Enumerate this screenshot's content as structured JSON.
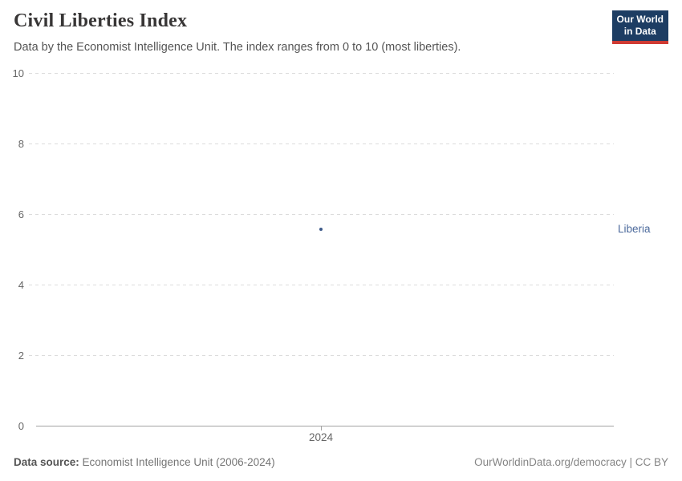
{
  "header": {
    "title": "Civil Liberties Index",
    "subtitle": "Data by the Economist Intelligence Unit. The index ranges from 0 to 10 (most liberties).",
    "logo": {
      "line1": "Our World",
      "line2": "in Data",
      "bg_color": "#1d3d63",
      "accent_color": "#cf3b33",
      "text_color": "#ffffff"
    }
  },
  "chart_data": {
    "type": "scatter",
    "title": "Civil Liberties Index",
    "x": [
      2024
    ],
    "xticks": [
      "2024"
    ],
    "yticks": [
      0,
      2,
      4,
      6,
      8,
      10
    ],
    "ylim": [
      0,
      10
    ],
    "grid": "horizontal-dashed",
    "series": [
      {
        "name": "Liberia",
        "values": [
          5.59
        ],
        "color": "#4c6a9c",
        "dot_color": "#3d5a8a"
      }
    ],
    "entity_label": "Liberia",
    "grid_color": "#dcdcdc",
    "axis_color": "#a3a3a3"
  },
  "footer": {
    "source_label": "Data source:",
    "source_text": " Economist Intelligence Unit (2006-2024)",
    "license_text": "OurWorldinData.org/democracy | CC BY"
  }
}
